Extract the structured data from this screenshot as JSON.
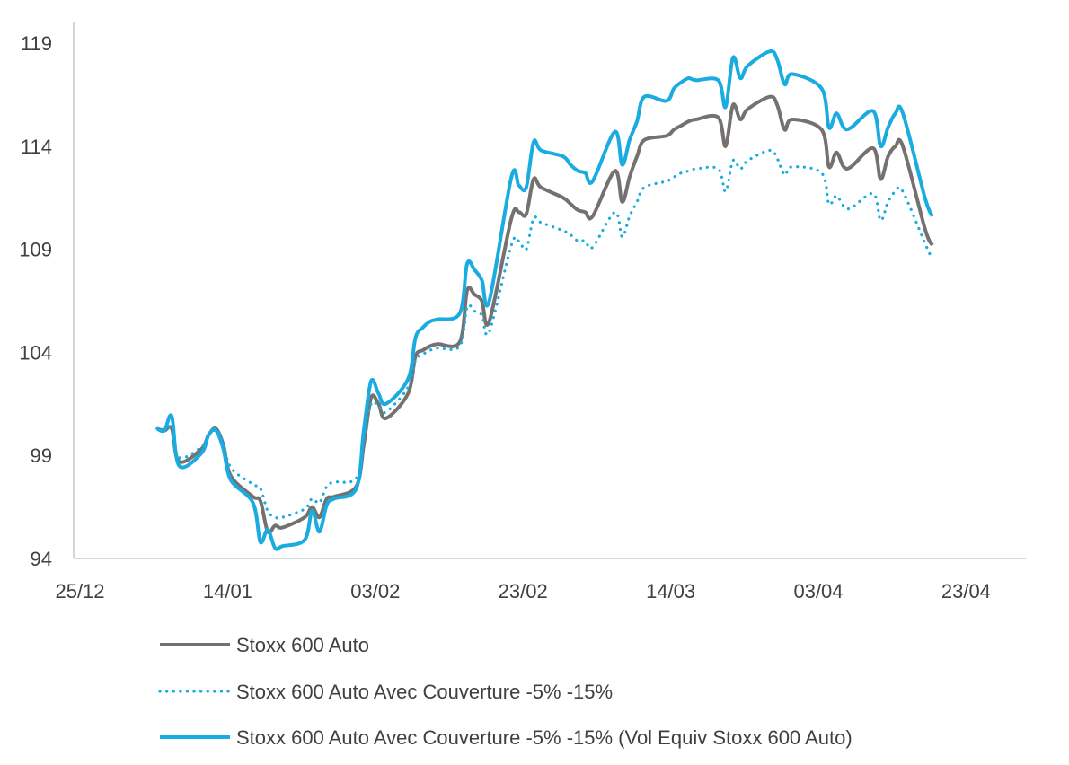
{
  "chart_data": {
    "type": "line",
    "title": "",
    "xlabel": "",
    "ylabel": "",
    "x_ticks": [
      "25/12",
      "14/01",
      "03/02",
      "23/02",
      "14/03",
      "03/04",
      "23/04"
    ],
    "y_ticks": [
      94,
      99,
      104,
      109,
      114,
      119
    ],
    "ylim": [
      94,
      119
    ],
    "grid": false,
    "legend_position": "bottom",
    "series": [
      {
        "name": "Stoxx 600 Auto",
        "color": "#767171",
        "style": "solid",
        "points": [
          [
            "2018-01-02",
            100.3
          ],
          [
            "2018-01-03",
            100.2
          ],
          [
            "2018-01-04",
            100.3
          ],
          [
            "2018-01-05",
            98.7
          ],
          [
            "2018-01-08",
            99.3
          ],
          [
            "2018-01-09",
            100.0
          ],
          [
            "2018-01-10",
            100.3
          ],
          [
            "2018-01-11",
            99.5
          ],
          [
            "2018-01-12",
            98.0
          ],
          [
            "2018-01-15",
            97.0
          ],
          [
            "2018-01-16",
            96.8
          ],
          [
            "2018-01-17",
            95.3
          ],
          [
            "2018-01-18",
            95.6
          ],
          [
            "2018-01-19",
            95.5
          ],
          [
            "2018-01-22",
            96.0
          ],
          [
            "2018-01-23",
            96.5
          ],
          [
            "2018-01-24",
            96.0
          ],
          [
            "2018-01-25",
            96.9
          ],
          [
            "2018-01-26",
            97.0
          ],
          [
            "2018-01-29",
            97.5
          ],
          [
            "2018-01-30",
            99.5
          ],
          [
            "2018-01-31",
            101.8
          ],
          [
            "2018-02-01",
            101.5
          ],
          [
            "2018-02-02",
            100.8
          ],
          [
            "2018-02-05",
            102.0
          ],
          [
            "2018-02-06",
            103.8
          ],
          [
            "2018-02-07",
            104.1
          ],
          [
            "2018-02-08",
            104.3
          ],
          [
            "2018-02-09",
            104.4
          ],
          [
            "2018-02-12",
            104.5
          ],
          [
            "2018-02-13",
            107.0
          ],
          [
            "2018-02-14",
            106.8
          ],
          [
            "2018-02-15",
            106.5
          ],
          [
            "2018-02-16",
            105.5
          ],
          [
            "2018-02-19",
            110.5
          ],
          [
            "2018-02-20",
            110.8
          ],
          [
            "2018-02-21",
            110.7
          ],
          [
            "2018-02-22",
            112.4
          ],
          [
            "2018-02-23",
            112.0
          ],
          [
            "2018-02-26",
            111.5
          ],
          [
            "2018-02-27",
            111.2
          ],
          [
            "2018-02-28",
            110.9
          ],
          [
            "2018-03-01",
            110.8
          ],
          [
            "2018-03-02",
            110.6
          ],
          [
            "2018-03-05",
            112.8
          ],
          [
            "2018-03-06",
            111.3
          ],
          [
            "2018-03-07",
            112.5
          ],
          [
            "2018-03-08",
            113.5
          ],
          [
            "2018-03-09",
            114.3
          ],
          [
            "2018-03-12",
            114.5
          ],
          [
            "2018-03-13",
            114.8
          ],
          [
            "2018-03-14",
            115.0
          ],
          [
            "2018-03-15",
            115.2
          ],
          [
            "2018-03-16",
            115.3
          ],
          [
            "2018-03-19",
            115.4
          ],
          [
            "2018-03-20",
            114.0
          ],
          [
            "2018-03-21",
            116.0
          ],
          [
            "2018-03-22",
            115.3
          ],
          [
            "2018-03-23",
            115.8
          ],
          [
            "2018-03-26",
            116.4
          ],
          [
            "2018-03-27",
            116.0
          ],
          [
            "2018-03-28",
            114.8
          ],
          [
            "2018-03-29",
            115.3
          ],
          [
            "2018-04-02",
            114.8
          ],
          [
            "2018-04-03",
            113.0
          ],
          [
            "2018-04-04",
            113.7
          ],
          [
            "2018-04-05",
            113.0
          ],
          [
            "2018-04-06",
            113.0
          ],
          [
            "2018-04-09",
            113.9
          ],
          [
            "2018-04-10",
            112.4
          ],
          [
            "2018-04-11",
            113.5
          ],
          [
            "2018-04-12",
            114.0
          ],
          [
            "2018-04-13",
            114.0
          ],
          [
            "2018-04-16",
            110.0
          ],
          [
            "2018-04-17",
            109.2
          ]
        ]
      },
      {
        "name": "Stoxx 600 Auto Avec Couverture -5% -15%",
        "color": "#1AABE0",
        "style": "dotted",
        "points": [
          [
            "2018-01-02",
            100.3
          ],
          [
            "2018-01-03",
            100.2
          ],
          [
            "2018-01-04",
            100.3
          ],
          [
            "2018-01-05",
            98.9
          ],
          [
            "2018-01-08",
            99.4
          ],
          [
            "2018-01-09",
            100.0
          ],
          [
            "2018-01-10",
            100.3
          ],
          [
            "2018-01-11",
            99.6
          ],
          [
            "2018-01-12",
            98.4
          ],
          [
            "2018-01-15",
            97.6
          ],
          [
            "2018-01-16",
            97.4
          ],
          [
            "2018-01-17",
            96.3
          ],
          [
            "2018-01-18",
            96.0
          ],
          [
            "2018-01-19",
            96.0
          ],
          [
            "2018-01-22",
            96.4
          ],
          [
            "2018-01-23",
            96.9
          ],
          [
            "2018-01-24",
            96.7
          ],
          [
            "2018-01-25",
            97.5
          ],
          [
            "2018-01-26",
            97.7
          ],
          [
            "2018-01-29",
            97.9
          ],
          [
            "2018-01-30",
            99.8
          ],
          [
            "2018-01-31",
            101.5
          ],
          [
            "2018-02-01",
            101.4
          ],
          [
            "2018-02-02",
            101.1
          ],
          [
            "2018-02-05",
            102.3
          ],
          [
            "2018-02-06",
            103.6
          ],
          [
            "2018-02-07",
            103.9
          ],
          [
            "2018-02-08",
            104.1
          ],
          [
            "2018-02-09",
            104.2
          ],
          [
            "2018-02-12",
            104.3
          ],
          [
            "2018-02-13",
            106.2
          ],
          [
            "2018-02-14",
            106.0
          ],
          [
            "2018-02-15",
            105.8
          ],
          [
            "2018-02-16",
            105.0
          ],
          [
            "2018-02-19",
            109.2
          ],
          [
            "2018-02-20",
            109.4
          ],
          [
            "2018-02-21",
            109.0
          ],
          [
            "2018-02-22",
            110.5
          ],
          [
            "2018-02-23",
            110.3
          ],
          [
            "2018-02-26",
            109.9
          ],
          [
            "2018-02-27",
            109.7
          ],
          [
            "2018-02-28",
            109.4
          ],
          [
            "2018-03-01",
            109.4
          ],
          [
            "2018-03-02",
            109.1
          ],
          [
            "2018-03-05",
            110.8
          ],
          [
            "2018-03-06",
            109.6
          ],
          [
            "2018-03-07",
            110.6
          ],
          [
            "2018-03-08",
            111.3
          ],
          [
            "2018-03-09",
            112.0
          ],
          [
            "2018-03-12",
            112.3
          ],
          [
            "2018-03-13",
            112.5
          ],
          [
            "2018-03-14",
            112.7
          ],
          [
            "2018-03-15",
            112.8
          ],
          [
            "2018-03-16",
            112.9
          ],
          [
            "2018-03-19",
            112.9
          ],
          [
            "2018-03-20",
            111.8
          ],
          [
            "2018-03-21",
            113.3
          ],
          [
            "2018-03-22",
            112.9
          ],
          [
            "2018-03-23",
            113.3
          ],
          [
            "2018-03-26",
            113.8
          ],
          [
            "2018-03-27",
            113.4
          ],
          [
            "2018-03-28",
            112.6
          ],
          [
            "2018-03-29",
            113.0
          ],
          [
            "2018-04-02",
            112.7
          ],
          [
            "2018-04-03",
            111.2
          ],
          [
            "2018-04-04",
            111.6
          ],
          [
            "2018-04-05",
            111.1
          ],
          [
            "2018-04-06",
            111.0
          ],
          [
            "2018-04-09",
            111.7
          ],
          [
            "2018-04-10",
            110.4
          ],
          [
            "2018-04-11",
            111.3
          ],
          [
            "2018-04-12",
            111.8
          ],
          [
            "2018-04-13",
            111.8
          ],
          [
            "2018-04-16",
            109.3
          ],
          [
            "2018-04-17",
            108.5
          ]
        ]
      },
      {
        "name": "Stoxx 600 Auto Avec Couverture -5% -15% (Vol Equiv Stoxx 600 Auto)",
        "color": "#1AABE0",
        "style": "solid",
        "points": [
          [
            "2018-01-02",
            100.3
          ],
          [
            "2018-01-03",
            100.2
          ],
          [
            "2018-01-04",
            100.9
          ],
          [
            "2018-01-05",
            98.5
          ],
          [
            "2018-01-08",
            99.1
          ],
          [
            "2018-01-09",
            100.0
          ],
          [
            "2018-01-10",
            100.2
          ],
          [
            "2018-01-11",
            99.3
          ],
          [
            "2018-01-12",
            97.8
          ],
          [
            "2018-01-15",
            96.7
          ],
          [
            "2018-01-16",
            94.8
          ],
          [
            "2018-01-17",
            95.4
          ],
          [
            "2018-01-18",
            94.5
          ],
          [
            "2018-01-19",
            94.6
          ],
          [
            "2018-01-22",
            94.9
          ],
          [
            "2018-01-23",
            96.3
          ],
          [
            "2018-01-24",
            95.3
          ],
          [
            "2018-01-25",
            96.6
          ],
          [
            "2018-01-26",
            96.9
          ],
          [
            "2018-01-29",
            97.4
          ],
          [
            "2018-01-30",
            100.2
          ],
          [
            "2018-01-31",
            102.6
          ],
          [
            "2018-02-01",
            102.0
          ],
          [
            "2018-02-02",
            101.5
          ],
          [
            "2018-02-05",
            102.7
          ],
          [
            "2018-02-06",
            104.7
          ],
          [
            "2018-02-07",
            105.2
          ],
          [
            "2018-02-08",
            105.5
          ],
          [
            "2018-02-09",
            105.6
          ],
          [
            "2018-02-12",
            105.9
          ],
          [
            "2018-02-13",
            108.3
          ],
          [
            "2018-02-14",
            108.0
          ],
          [
            "2018-02-15",
            107.5
          ],
          [
            "2018-02-16",
            106.5
          ],
          [
            "2018-02-19",
            112.5
          ],
          [
            "2018-02-20",
            112.1
          ],
          [
            "2018-02-21",
            112.0
          ],
          [
            "2018-02-22",
            114.2
          ],
          [
            "2018-02-23",
            113.8
          ],
          [
            "2018-02-26",
            113.5
          ],
          [
            "2018-02-27",
            113.1
          ],
          [
            "2018-02-28",
            112.8
          ],
          [
            "2018-03-01",
            112.7
          ],
          [
            "2018-03-02",
            112.3
          ],
          [
            "2018-03-05",
            114.7
          ],
          [
            "2018-03-06",
            113.1
          ],
          [
            "2018-03-07",
            114.3
          ],
          [
            "2018-03-08",
            115.2
          ],
          [
            "2018-03-09",
            116.4
          ],
          [
            "2018-03-12",
            116.2
          ],
          [
            "2018-03-13",
            116.8
          ],
          [
            "2018-03-14",
            117.1
          ],
          [
            "2018-03-15",
            117.3
          ],
          [
            "2018-03-16",
            117.2
          ],
          [
            "2018-03-19",
            117.2
          ],
          [
            "2018-03-20",
            115.9
          ],
          [
            "2018-03-21",
            118.3
          ],
          [
            "2018-03-22",
            117.3
          ],
          [
            "2018-03-23",
            117.9
          ],
          [
            "2018-03-26",
            118.6
          ],
          [
            "2018-03-27",
            118.2
          ],
          [
            "2018-03-28",
            117.0
          ],
          [
            "2018-03-29",
            117.5
          ],
          [
            "2018-04-02",
            116.8
          ],
          [
            "2018-04-03",
            114.9
          ],
          [
            "2018-04-04",
            115.6
          ],
          [
            "2018-04-05",
            114.9
          ],
          [
            "2018-04-06",
            114.9
          ],
          [
            "2018-04-09",
            115.7
          ],
          [
            "2018-04-10",
            114.0
          ],
          [
            "2018-04-11",
            114.9
          ],
          [
            "2018-04-12",
            115.6
          ],
          [
            "2018-04-13",
            115.6
          ],
          [
            "2018-04-16",
            111.5
          ],
          [
            "2018-04-17",
            110.6
          ]
        ]
      }
    ]
  }
}
